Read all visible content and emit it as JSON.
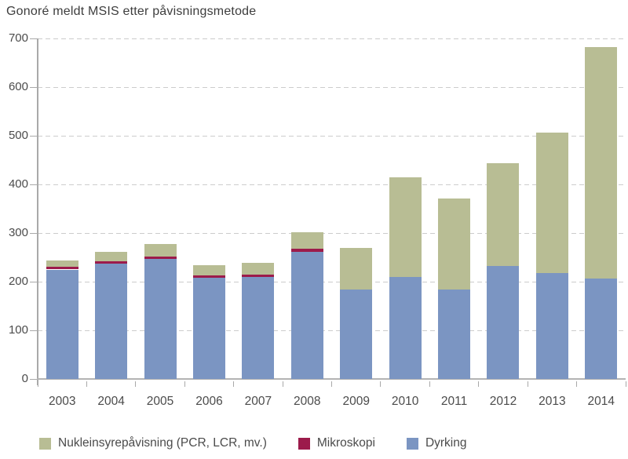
{
  "chart_data": {
    "type": "bar",
    "stacked": true,
    "title": "Gonoré meldt MSIS etter påvisningsmetode",
    "categories": [
      "2003",
      "2004",
      "2005",
      "2006",
      "2007",
      "2008",
      "2009",
      "2010",
      "2011",
      "2012",
      "2013",
      "2014"
    ],
    "series": [
      {
        "name": "Dyrking",
        "color": "#7b95c2",
        "values": [
          225,
          237,
          247,
          208,
          210,
          262,
          184,
          209,
          184,
          232,
          217,
          206
        ]
      },
      {
        "name": "Mikroskopi",
        "color": "#9c1b4b",
        "values": [
          5,
          5,
          5,
          5,
          5,
          6,
          0,
          0,
          0,
          0,
          0,
          0
        ]
      },
      {
        "name": "Nukleinsyrepåvisning (PCR, LCR, mv.)",
        "color": "#b8bd94",
        "values": [
          13,
          20,
          25,
          21,
          23,
          34,
          86,
          205,
          187,
          211,
          290,
          476
        ]
      }
    ],
    "totals": [
      243,
      262,
      277,
      234,
      238,
      302,
      270,
      414,
      371,
      443,
      507,
      682
    ],
    "ylim": [
      0,
      700
    ],
    "ytick_step": 100,
    "y_ticks": [
      "0",
      "100",
      "200",
      "300",
      "400",
      "500",
      "600",
      "700"
    ],
    "grid": "horizontal-dashed",
    "legend_position": "bottom",
    "legend": [
      {
        "label": "Nukleinsyrepåvisning (PCR, LCR, mv.)",
        "color": "#b8bd94"
      },
      {
        "label": "Mikroskopi",
        "color": "#9c1b4b"
      },
      {
        "label": "Dyrking",
        "color": "#7b95c2"
      }
    ],
    "colors": {
      "grid": "#cccccc",
      "axis": "#a9a9a9",
      "baseline": "#b3b3b3",
      "text": "#4b4b4b",
      "title": "#3d3d3d",
      "background": "#ffffff"
    }
  }
}
